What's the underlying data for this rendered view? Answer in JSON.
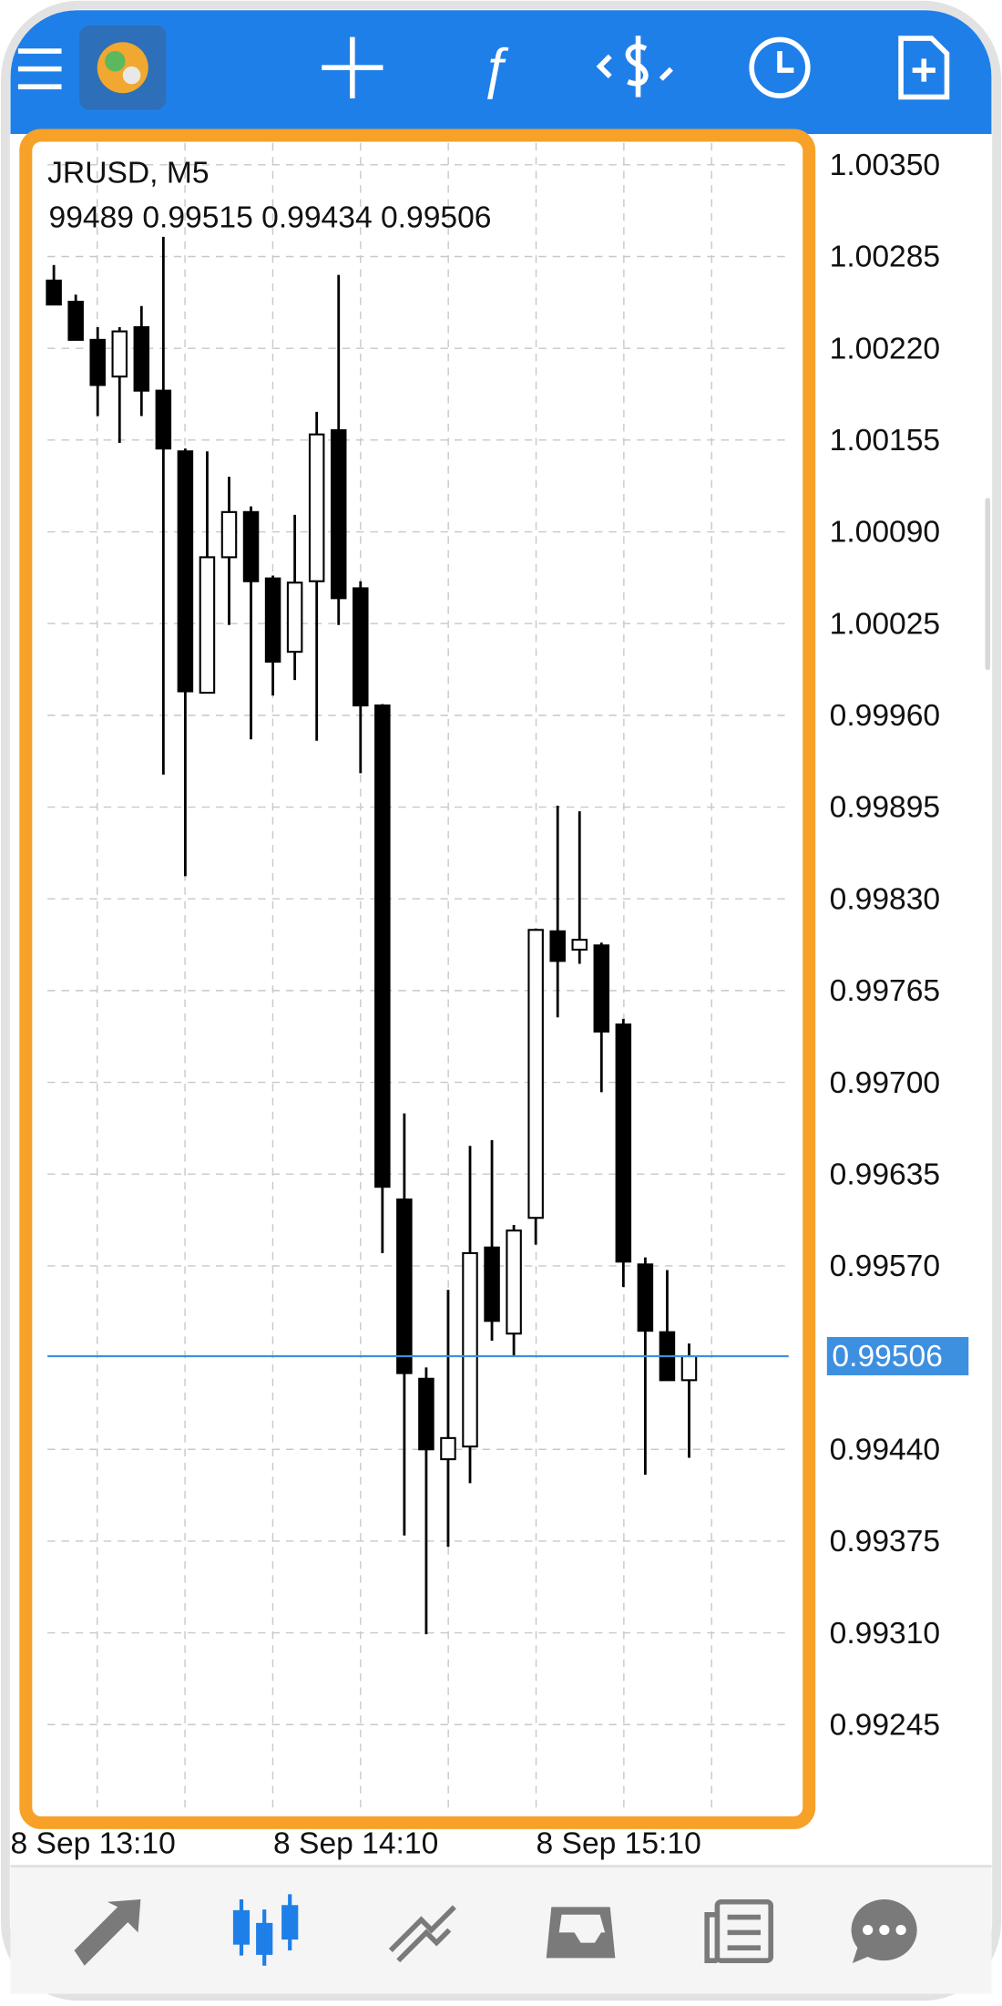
{
  "chart_data": {
    "type": "candlestick",
    "title": "JRUSD, M5",
    "ohlc_text": "99489 0.99515 0.99434 0.99506",
    "open": [
      1.00268,
      1.00253,
      1.00226,
      1.002,
      1.00235,
      1.0019,
      1.00147,
      0.99976,
      1.00072,
      1.00104,
      1.00057,
      1.00005,
      1.00055,
      1.00162,
      1.0005,
      0.99967,
      0.99617,
      0.9949,
      0.99433,
      0.99442,
      0.99583,
      0.99522,
      0.99604,
      0.99807,
      0.99794,
      0.99797,
      0.99741,
      0.99571,
      0.99523,
      0.99489
    ],
    "high": [
      1.00279,
      1.00258,
      1.00235,
      1.00235,
      1.0025,
      1.00299,
      1.00149,
      1.00147,
      1.00129,
      1.00108,
      1.00059,
      1.00102,
      1.00175,
      1.00272,
      1.00055,
      0.99968,
      0.99678,
      0.99498,
      0.99553,
      0.99655,
      0.99659,
      0.99599,
      0.99809,
      0.99896,
      0.99892,
      0.99799,
      0.99745,
      0.99576,
      0.99567,
      0.99515
    ],
    "low": [
      1.00251,
      1.00226,
      1.00172,
      1.00153,
      1.00172,
      0.99918,
      0.99846,
      0.99976,
      1.00024,
      0.99943,
      0.99974,
      0.99985,
      0.99942,
      1.00024,
      0.99919,
      0.99579,
      0.99379,
      0.99309,
      0.99371,
      0.99416,
      0.99517,
      0.99506,
      0.99585,
      0.99746,
      0.99784,
      0.99693,
      0.99555,
      0.99422,
      0.99489,
      0.99434
    ],
    "close": [
      1.00251,
      1.00226,
      1.00194,
      1.00232,
      1.0019,
      1.00149,
      0.99977,
      1.00072,
      1.00104,
      1.00055,
      0.99998,
      1.00054,
      1.00159,
      1.00043,
      0.99967,
      0.99626,
      0.99494,
      0.9944,
      0.99448,
      0.99579,
      0.99531,
      0.99595,
      0.99808,
      0.99786,
      0.99801,
      0.99736,
      0.99573,
      0.99524,
      0.99489,
      0.99506
    ],
    "up_color": "#ffffff",
    "down_color": "#000000",
    "ylim": [
      0.9918,
      1.0037
    ],
    "yticks": [
      {
        "value": 1.0035,
        "label": "1.00350"
      },
      1.00285,
      {
        "value": 1.0022,
        "label": "1.00220"
      },
      1.00155,
      {
        "value": 1.0009,
        "label": "1.00090"
      },
      1.00025,
      {
        "value": 0.9996,
        "label": "0.99960"
      },
      0.99895,
      {
        "value": 0.9983,
        "label": "0.99830"
      },
      0.99765,
      {
        "value": 0.997,
        "label": "0.99700"
      },
      0.99635,
      {
        "value": 0.9957,
        "label": "0.99570"
      },
      {
        "value": 0.9944,
        "label": "0.99440"
      },
      0.99375,
      {
        "value": 0.9931,
        "label": "0.99310"
      },
      0.99245
    ],
    "current_price": 0.99506,
    "current_price_color": "#3d8fe0",
    "x_labels": [
      "8 Sep 13:10",
      "8 Sep 14:10",
      "8 Sep 15:10"
    ],
    "grid": true
  }
}
